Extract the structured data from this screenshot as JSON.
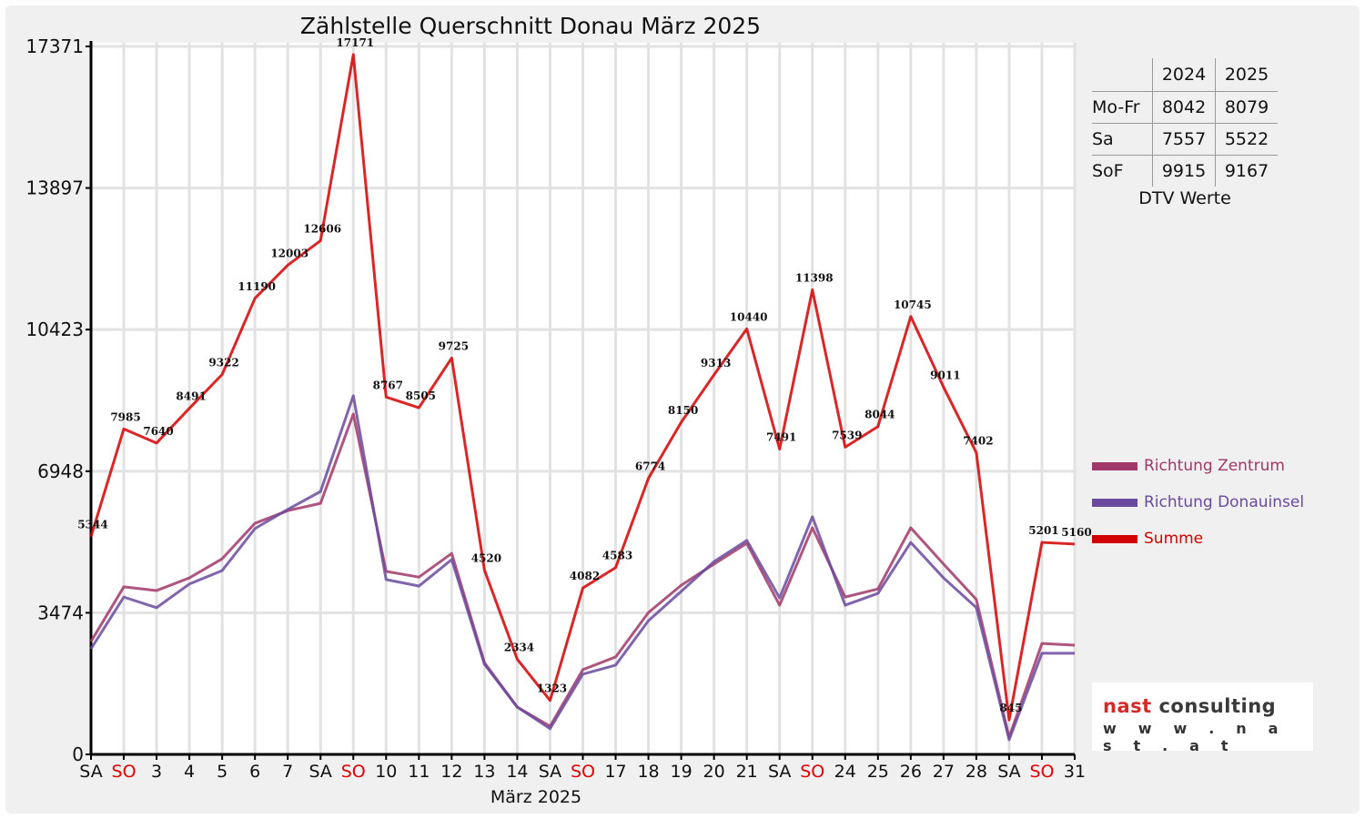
{
  "chart_data": {
    "type": "line",
    "title": "Zählstelle Querschnitt Donau März 2025",
    "xlabel": "März 2025",
    "ylabel": "",
    "ylim": [
      0,
      17371
    ],
    "yticks": [
      0,
      3474,
      6948,
      10423,
      13897,
      17371
    ],
    "grid": true,
    "legend_position": "right",
    "categories": [
      "SA",
      "SO",
      "3",
      "4",
      "5",
      "6",
      "7",
      "SA",
      "SO",
      "10",
      "11",
      "12",
      "13",
      "14",
      "SA",
      "SO",
      "17",
      "18",
      "19",
      "20",
      "21",
      "SA",
      "SO",
      "24",
      "25",
      "26",
      "27",
      "28",
      "SA",
      "SO",
      "31"
    ],
    "weekend_categories": [
      "SO"
    ],
    "weekend_color": "#e00000",
    "series": [
      {
        "name": "Richtung Zentrum",
        "color": "#a0386a",
        "labeled": false,
        "values": [
          2770,
          4110,
          4020,
          4330,
          4800,
          5670,
          5980,
          6160,
          8350,
          4490,
          4350,
          4930,
          2250,
          1160,
          690,
          2080,
          2390,
          3480,
          4150,
          4670,
          5180,
          3660,
          5560,
          3860,
          4060,
          5560,
          4670,
          3800,
          420,
          2720,
          2680
        ]
      },
      {
        "name": "Richtung Donauinsel",
        "color": "#6a4a9e",
        "labeled": false,
        "values": [
          2590,
          3860,
          3600,
          4180,
          4510,
          5540,
          6010,
          6450,
          8800,
          4290,
          4130,
          4780,
          2210,
          1160,
          630,
          1970,
          2190,
          3280,
          4000,
          4730,
          5250,
          3840,
          5830,
          3660,
          3950,
          5200,
          4330,
          3600,
          360,
          2480,
          2480
        ]
      },
      {
        "name": "Summe",
        "color": "#d40000",
        "labeled": true,
        "values": [
          5344,
          7985,
          7640,
          8491,
          9322,
          11190,
          12003,
          12606,
          17171,
          8767,
          8505,
          9725,
          4520,
          2334,
          1323,
          4082,
          4583,
          6774,
          8150,
          9313,
          10440,
          7491,
          11398,
          7539,
          8044,
          10745,
          9011,
          7402,
          845,
          5201,
          5160
        ]
      }
    ]
  },
  "dtv_table": {
    "caption": "DTV Werte",
    "columns": [
      "2024",
      "2025"
    ],
    "rows": [
      {
        "label": "Mo-Fr",
        "values": [
          "8042",
          "8079"
        ]
      },
      {
        "label": "Sa",
        "values": [
          "7557",
          "5522"
        ]
      },
      {
        "label": "SoF",
        "values": [
          "9915",
          "9167"
        ]
      }
    ]
  },
  "logo": {
    "brand_red": "nast",
    "brand_dark": "consulting",
    "url": "w w w . n a s t . a t"
  }
}
